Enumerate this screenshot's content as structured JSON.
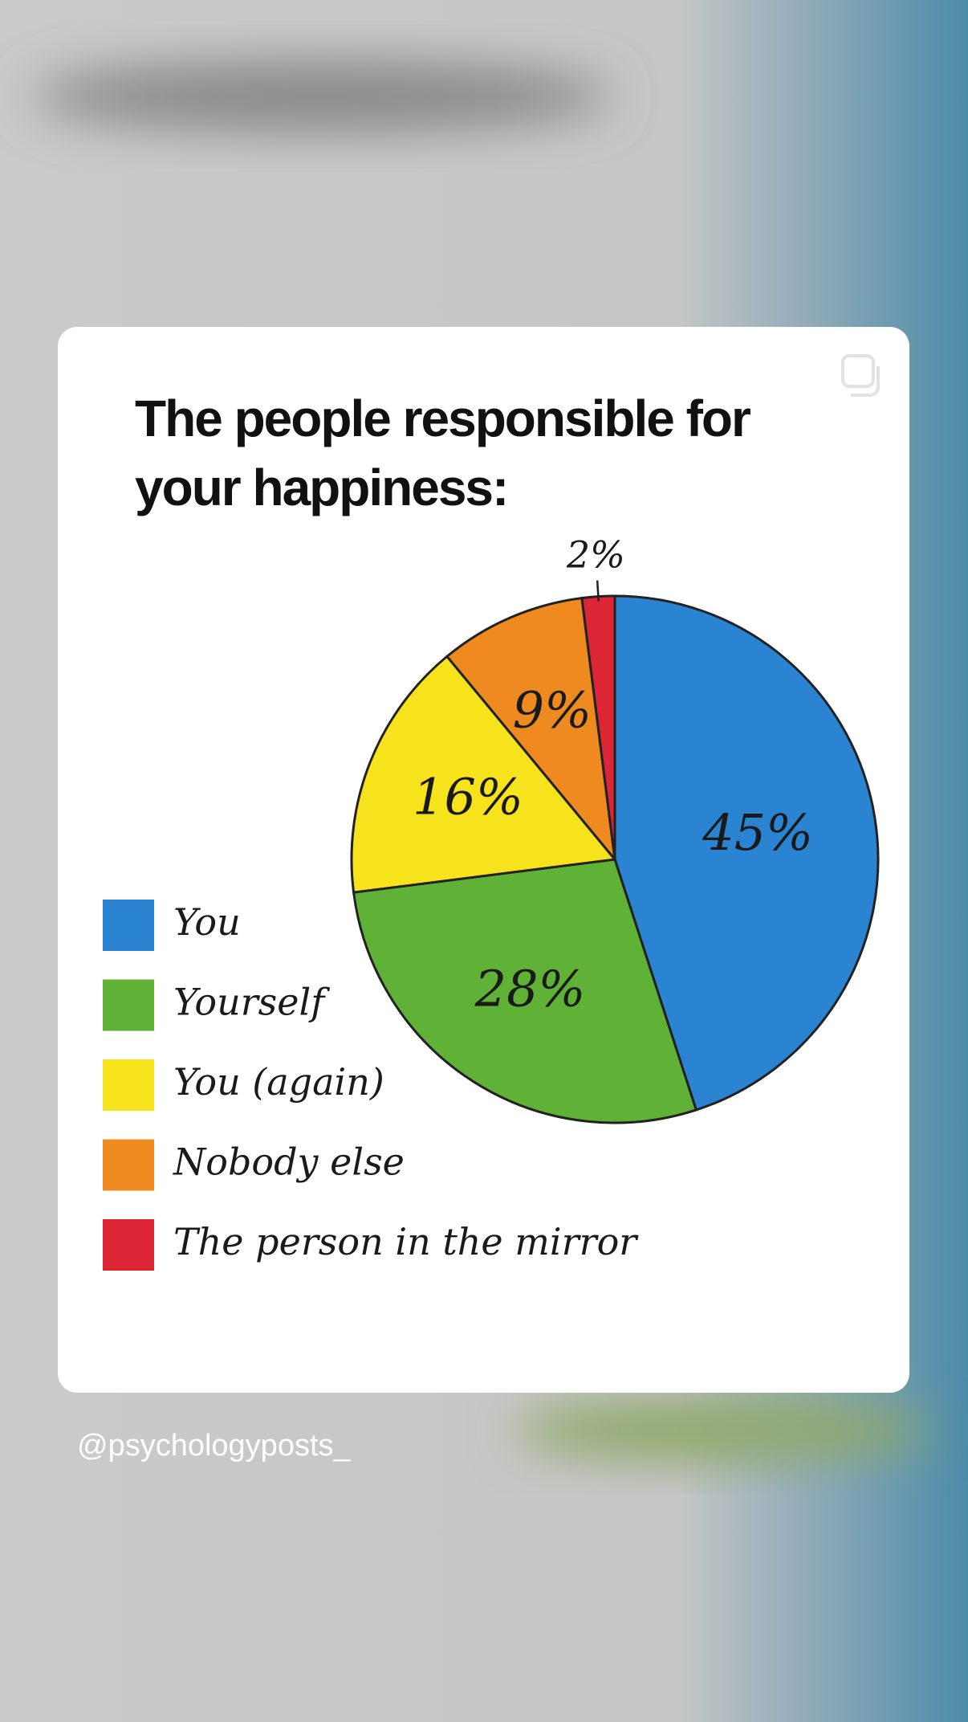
{
  "chart_data": {
    "type": "pie",
    "title": "The people responsible for your happiness:",
    "categories": [
      "You",
      "Yourself",
      "You (again)",
      "Nobody else",
      "The person in the mirror"
    ],
    "values": [
      45,
      28,
      16,
      9,
      2
    ],
    "value_labels": [
      "45%",
      "28%",
      "16%",
      "9%",
      "2%"
    ],
    "colors": [
      "#2a84d2",
      "#5fb236",
      "#f6e31c",
      "#ee8a20",
      "#dc2636"
    ]
  },
  "handle": "@psychologyposts_"
}
